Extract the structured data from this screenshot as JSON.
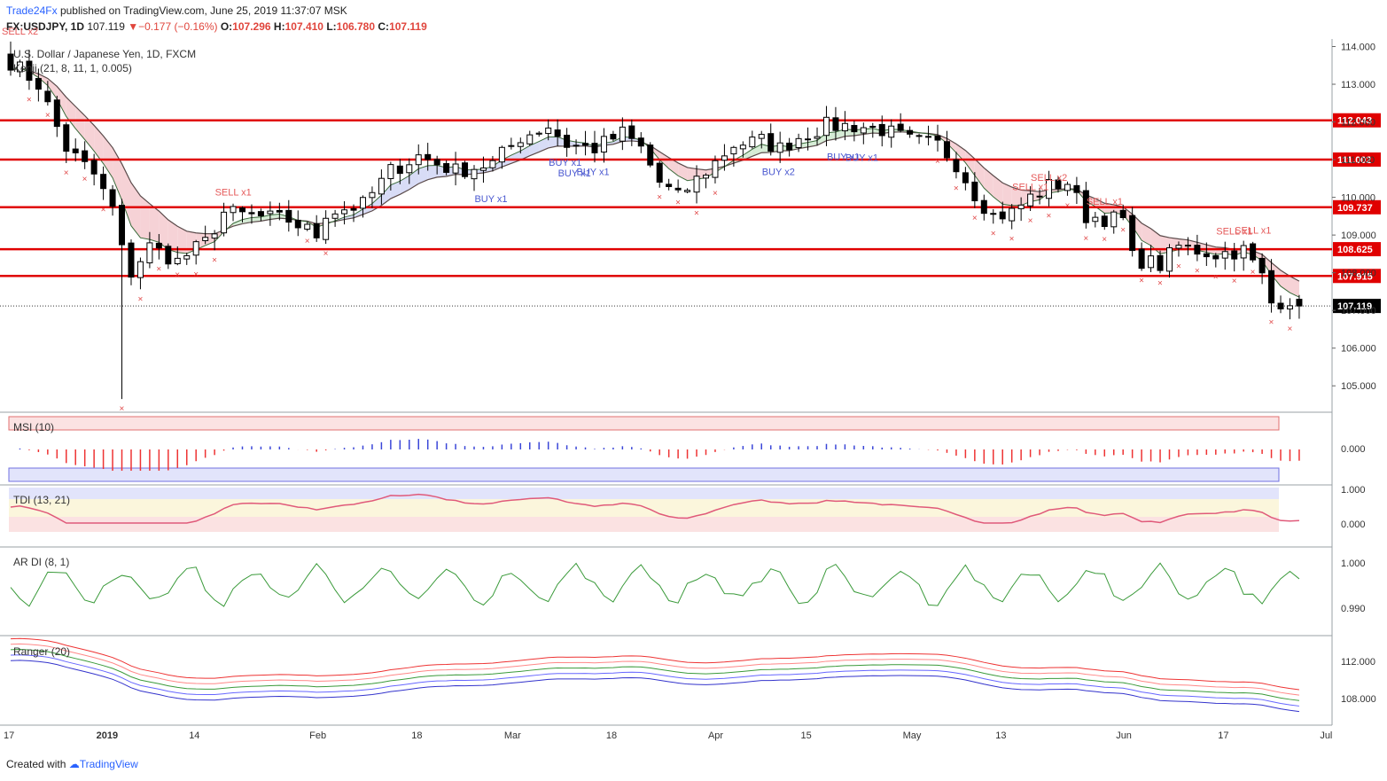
{
  "header": {
    "brand": "Trade24Fx",
    "published": "published on TradingView.com, June 25, 2019 11:37:07 MSK",
    "symbol": "FX:USDJPY, 1D",
    "last": "107.119",
    "change": "▼−0.177 (−0.16%)",
    "open_label": "O:",
    "open": "107.296",
    "high_label": "H:",
    "high": "107.410",
    "low_label": "L:",
    "low": "106.780",
    "close_label": "C:",
    "close": "107.119"
  },
  "footer": {
    "created": "Created with",
    "brand": "TradingView"
  },
  "colors": {
    "bull": "#ffffff",
    "bear": "#000000",
    "level": "#e00000",
    "buy": "#4a58d0",
    "sell": "#e55a5a",
    "cloud_bear": "#f6d2d6",
    "cloud_bull": "#d6ecd6",
    "cloud_blue": "#d8dcf6"
  },
  "chart_data": {
    "type": "candlestick",
    "title": "U.S. Dollar / Japanese Yen, 1D, FXCM",
    "indicator": "Kenji (21, 8, 11, 1, 0.005)",
    "ylim": [
      104.3,
      114.2
    ],
    "y_ticks": [
      "114.000",
      "113.000",
      "112.000",
      "111.000",
      "110.000",
      "109.000",
      "108.000",
      "107.000",
      "106.000",
      "105.000"
    ],
    "x_labels": [
      "17",
      "2019",
      "14",
      "Feb",
      "18",
      "Mar",
      "18",
      "Apr",
      "15",
      "May",
      "13",
      "Jun",
      "17",
      "Jul"
    ],
    "x_label_idx": [
      0,
      10,
      20,
      33,
      44,
      54,
      65,
      76,
      86,
      97,
      107,
      120,
      131,
      142
    ],
    "levels": [
      {
        "price": 112.043,
        "label": "112.043"
      },
      {
        "price": 111.002,
        "label": "111.002"
      },
      {
        "price": 109.737,
        "label": "109.737"
      },
      {
        "price": 108.625,
        "label": "108.625"
      },
      {
        "price": 107.915,
        "label": "107.915"
      }
    ],
    "last_price": {
      "price": 107.119,
      "label": "107.119"
    },
    "key_closes": [
      [
        0,
        113.6
      ],
      [
        3,
        113.0
      ],
      [
        6,
        111.3
      ],
      [
        9,
        110.6
      ],
      [
        11,
        109.7
      ],
      [
        12,
        108.6
      ],
      [
        13,
        108.0
      ],
      [
        15,
        108.7
      ],
      [
        18,
        108.3
      ],
      [
        21,
        108.8
      ],
      [
        23,
        109.6
      ],
      [
        26,
        109.5
      ],
      [
        30,
        109.4
      ],
      [
        33,
        109.0
      ],
      [
        34,
        109.6
      ],
      [
        38,
        109.8
      ],
      [
        41,
        110.7
      ],
      [
        44,
        111.1
      ],
      [
        48,
        110.7
      ],
      [
        52,
        110.9
      ],
      [
        55,
        111.6
      ],
      [
        58,
        111.9
      ],
      [
        60,
        111.4
      ],
      [
        63,
        111.3
      ],
      [
        66,
        111.7
      ],
      [
        68,
        111.3
      ],
      [
        70,
        110.4
      ],
      [
        72,
        110.0
      ],
      [
        75,
        110.7
      ],
      [
        78,
        111.4
      ],
      [
        81,
        111.5
      ],
      [
        83,
        111.3
      ],
      [
        85,
        111.6
      ],
      [
        88,
        111.9
      ],
      [
        91,
        111.9
      ],
      [
        94,
        111.8
      ],
      [
        97,
        111.5
      ],
      [
        100,
        111.4
      ],
      [
        102,
        110.9
      ],
      [
        104,
        110.1
      ],
      [
        106,
        109.5
      ],
      [
        108,
        109.6
      ],
      [
        110,
        110.0
      ],
      [
        112,
        110.3
      ],
      [
        114,
        110.4
      ],
      [
        116,
        109.5
      ],
      [
        120,
        109.4
      ],
      [
        121,
        108.4
      ],
      [
        124,
        108.2
      ],
      [
        126,
        108.7
      ],
      [
        130,
        108.5
      ],
      [
        133,
        108.6
      ],
      [
        135,
        107.9
      ],
      [
        136,
        107.2
      ],
      [
        138,
        107.3
      ],
      [
        139,
        107.12
      ]
    ],
    "signals": [
      {
        "idx": 0,
        "label": "SELL x2",
        "side": "sell"
      },
      {
        "idx": 23,
        "label": "SELL x1",
        "side": "sell"
      },
      {
        "idx": 51,
        "label": "BUY x1",
        "side": "buy"
      },
      {
        "idx": 59,
        "label": "BUY x1",
        "side": "buy"
      },
      {
        "idx": 60,
        "label": "BUY x1",
        "side": "buy"
      },
      {
        "idx": 62,
        "label": "BUY x1",
        "side": "buy"
      },
      {
        "idx": 82,
        "label": "BUY x2",
        "side": "buy"
      },
      {
        "idx": 89,
        "label": "BUY x1",
        "side": "buy"
      },
      {
        "idx": 91,
        "label": "BUY x1",
        "side": "buy"
      },
      {
        "idx": 109,
        "label": "SELL x1",
        "side": "sell"
      },
      {
        "idx": 111,
        "label": "SELL x2",
        "side": "sell"
      },
      {
        "idx": 117,
        "label": "SELL x1",
        "side": "sell"
      },
      {
        "idx": 131,
        "label": "SELL x1",
        "side": "sell"
      },
      {
        "idx": 133,
        "label": "SELL x1",
        "side": "sell"
      }
    ],
    "panels": [
      {
        "name": "MSI",
        "label": "MSI (10)",
        "ticks": [
          "0.000"
        ]
      },
      {
        "name": "TDI",
        "label": "TDI (13, 21)",
        "ticks": [
          "1.000",
          "0.000"
        ]
      },
      {
        "name": "ARDI",
        "label": "AR DI (8, 1)",
        "ticks": [
          "1.000",
          "0.990"
        ]
      },
      {
        "name": "Ranger",
        "label": "Ranger (20)",
        "ticks": [
          "112.000",
          "108.000"
        ]
      }
    ]
  }
}
